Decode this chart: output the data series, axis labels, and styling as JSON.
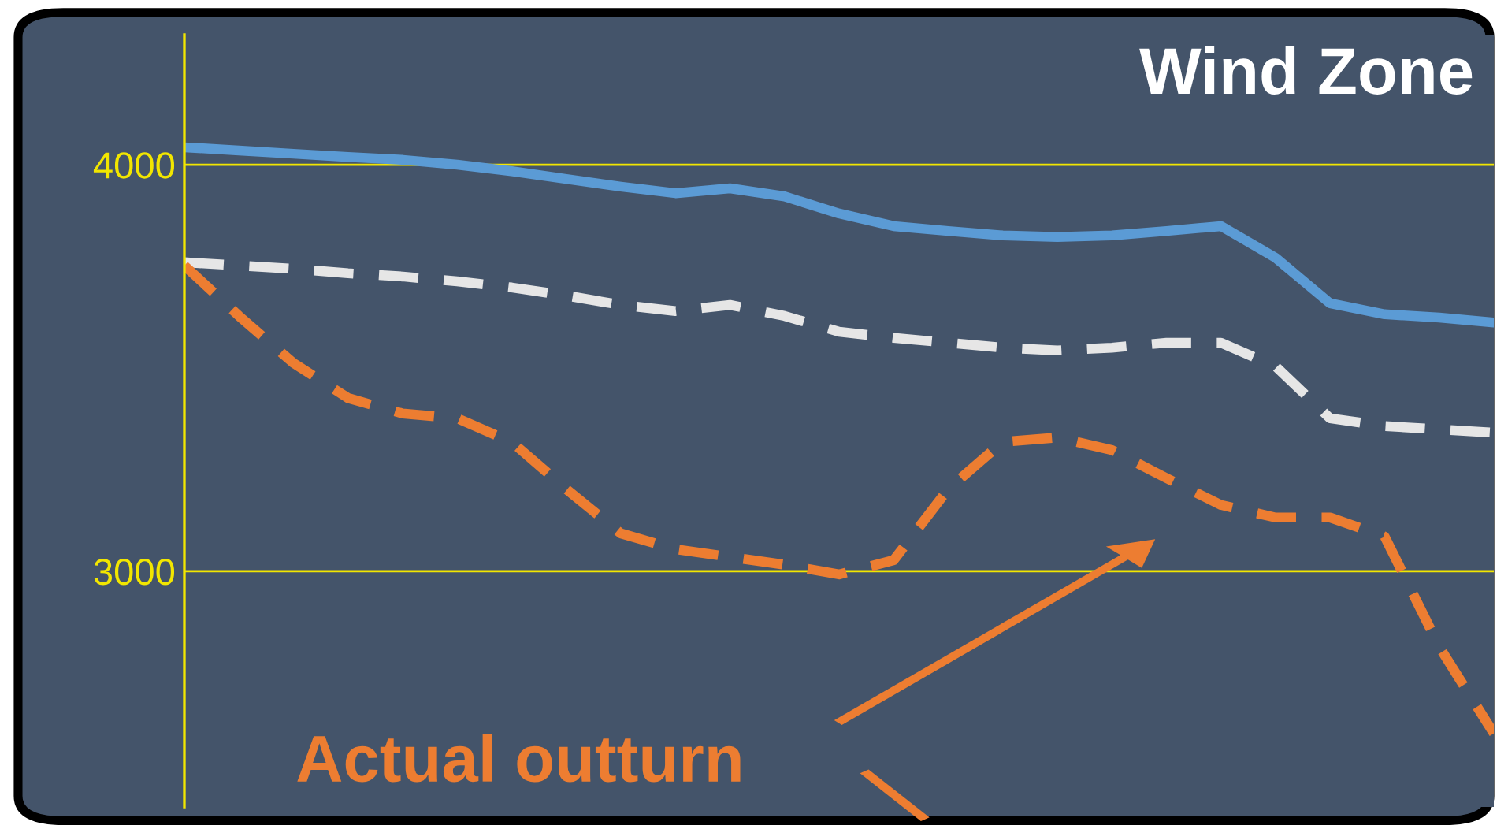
{
  "chart_data": {
    "type": "line",
    "title": "Wind Zone",
    "categories": [
      null,
      null,
      null,
      null,
      null,
      null,
      null,
      null,
      null,
      null,
      null,
      null,
      null,
      null,
      null,
      null,
      null,
      null,
      null,
      null,
      null,
      null,
      null,
      null,
      null
    ],
    "series": [
      {
        "color": "#5b9bd5",
        "line_style": "solid",
        "values": [
          4043,
          4035,
          4027,
          4019,
          4012,
          4000,
          3984,
          3965,
          3946,
          3930,
          3942,
          3922,
          3880,
          3849,
          3837,
          3826,
          3822,
          3826,
          3837,
          3849,
          3771,
          3659,
          3632,
          3624,
          3612
        ]
      },
      {
        "color": "#e6e6e6",
        "line_style": "dashed",
        "values": [
          3760,
          3752,
          3744,
          3733,
          3725,
          3713,
          3698,
          3678,
          3655,
          3640,
          3655,
          3628,
          3589,
          3574,
          3562,
          3550,
          3543,
          3550,
          3562,
          3562,
          3504,
          3376,
          3357,
          3349,
          3341
        ]
      },
      {
        "color": "#ed7d31",
        "line_style": "dashed",
        "values": [
          3752,
          3628,
          3512,
          3426,
          3388,
          3376,
          3318,
          3202,
          3093,
          3054,
          3035,
          3016,
          2992,
          3027,
          3202,
          3318,
          3329,
          3298,
          3229,
          3163,
          3132,
          3132,
          3085,
          2814,
          2601
        ]
      }
    ],
    "ylim": [
      2420,
      4320
    ],
    "yticks": [
      3000,
      4000
    ],
    "grid": "y",
    "legend": false,
    "marker": "none",
    "annotations": [
      "Actual outturn"
    ]
  }
}
